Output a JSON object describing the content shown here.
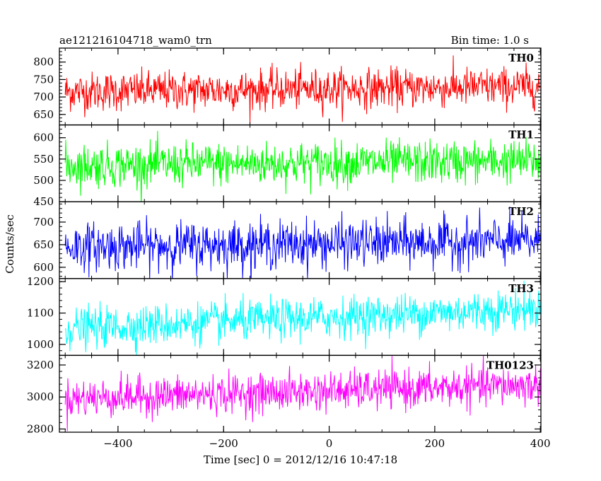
{
  "header": {
    "title": "ae121216104718_wam0_trn",
    "bin_time": "Bin time: 1.0 s"
  },
  "chart_data": {
    "type": "line",
    "xlabel": "Time [sec] 0 = 2012/12/16 10:47:18",
    "ylabel": "Counts/sec",
    "xlim": [
      -511,
      401
    ],
    "x_ticks": [
      -400,
      -200,
      0,
      200,
      400
    ],
    "x_tick_labels": [
      "−400",
      "−200",
      "0",
      "200",
      "400"
    ],
    "x_start": -500,
    "x_end": 400,
    "panels": [
      {
        "name": "TH0",
        "color": "#ff0000",
        "ylim": [
          620,
          840
        ],
        "yticks": [
          650,
          700,
          750,
          800
        ],
        "mean_start": 715,
        "mean_end": 730,
        "noise": 28
      },
      {
        "name": "TH1",
        "color": "#00ff00",
        "ylim": [
          450,
          630
        ],
        "yticks": [
          450,
          500,
          550,
          600
        ],
        "mean_start": 535,
        "mean_end": 545,
        "noise": 25
      },
      {
        "name": "TH2",
        "color": "#0000ff",
        "ylim": [
          575,
          745
        ],
        "yticks": [
          600,
          650,
          700
        ],
        "mean_start": 645,
        "mean_end": 658,
        "noise": 26
      },
      {
        "name": "TH3",
        "color": "#00ffff",
        "ylim": [
          965,
          1210
        ],
        "yticks": [
          1000,
          1100,
          1200
        ],
        "mean_start": 1050,
        "mean_end": 1115,
        "noise": 32
      },
      {
        "name": "TH0123",
        "color": "#ff00ff",
        "ylim": [
          2780,
          3260
        ],
        "yticks": [
          2800,
          3000,
          3200
        ],
        "mean_start": 2990,
        "mean_end": 3075,
        "noise": 60
      }
    ]
  }
}
